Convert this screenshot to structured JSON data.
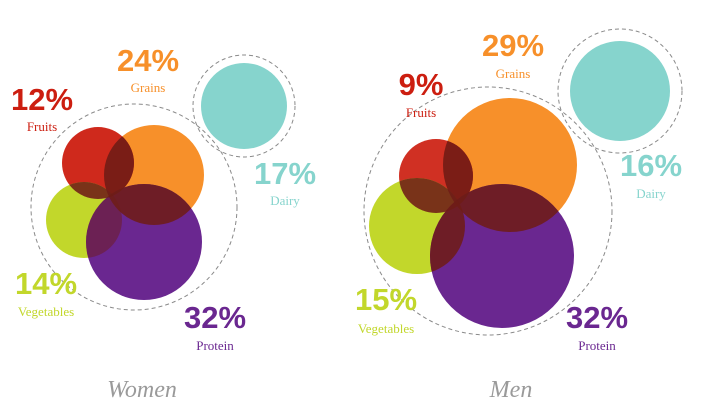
{
  "colors": {
    "fruits": "#cc1e10",
    "grains": "#f7902a",
    "dairy": "#86d4cd",
    "vegetables": "#c2d72b",
    "protein": "#6a2790",
    "overlap": "#6e1c17",
    "dashed_ring": "#8a8a8a",
    "title": "#9a9a9a"
  },
  "chart_data": [
    {
      "type": "bubble",
      "title": "Women",
      "unit": "%",
      "categories": [
        "Fruits",
        "Grains",
        "Dairy",
        "Vegetables",
        "Protein"
      ],
      "values": [
        12,
        24,
        17,
        14,
        32
      ],
      "labels": [
        "12%",
        "24%",
        "17%",
        "14%",
        "32%"
      ]
    },
    {
      "type": "bubble",
      "title": "Men",
      "unit": "%",
      "categories": [
        "Fruits",
        "Grains",
        "Dairy",
        "Vegetables",
        "Protein"
      ],
      "values": [
        9,
        29,
        16,
        15,
        32
      ],
      "labels": [
        "9%",
        "29%",
        "16%",
        "15%",
        "32%"
      ]
    }
  ]
}
